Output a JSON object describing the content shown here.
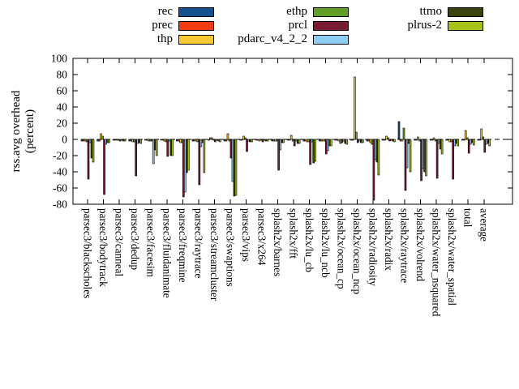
{
  "page": {
    "background": "#ffffff",
    "axis_color": "#000000"
  },
  "chart_data": {
    "type": "bar",
    "title": "",
    "ylabel_lines": [
      "rss.avg overhead",
      "(percent)"
    ],
    "ylim": [
      -80,
      100
    ],
    "ytick_step": 20,
    "ytick_labels": [
      "100",
      "80",
      "60",
      "40",
      "20",
      "0",
      "-20",
      "-40",
      "-60",
      "-80"
    ],
    "grid": false,
    "zero_line": "dashed",
    "legend_position": "top",
    "legend_columns": [
      [
        "rec",
        "prec",
        "thp"
      ],
      [
        "ethp",
        "prcl",
        "pdarc_v4_2_2"
      ],
      [
        "ttmo",
        "plrus-2"
      ]
    ],
    "unit": "percent",
    "categories": [
      "parsec3/blackscholes",
      "parsec3/bodytrack",
      "parsec3/canneal",
      "parsec3/dedup",
      "parsec3/facesim",
      "parsec3/fluidanimate",
      "parsec3/freqmine",
      "parsec3/raytrace",
      "parsec3/streamcluster",
      "parsec3/swaptions",
      "parsec3/vips",
      "parsec3/x264",
      "splash2x/barnes",
      "splash2x/fft",
      "splash2x/lu_cb",
      "splash2x/lu_ncb",
      "splash2x/ocean_cp",
      "splash2x/ocean_ncp",
      "splash2x/radiosity",
      "splash2x/radix",
      "splash2x/raytrace",
      "splash2x/volrend",
      "splash2x/water_nsquared",
      "splash2x/water_spatial",
      "total",
      "average"
    ],
    "series": [
      {
        "name": "rec",
        "color": "#15518f",
        "values": [
          -2,
          -2,
          -1,
          -2,
          -1,
          -1,
          -2,
          -2,
          -1,
          -2,
          -1,
          -1,
          -2,
          -1,
          -2,
          -2,
          -1,
          -1,
          -2,
          -1,
          22,
          -1,
          -1,
          -1,
          -1,
          -1
        ]
      },
      {
        "name": "prec",
        "color": "#f03c10",
        "values": [
          -2,
          -2,
          -1,
          -2,
          -1,
          -1,
          -2,
          -2,
          2,
          -2,
          -1,
          -1,
          -2,
          -1,
          -2,
          -2,
          -1,
          -1,
          -2,
          -1,
          -2,
          -1,
          -1,
          -1,
          -1,
          -1
        ]
      },
      {
        "name": "thp",
        "color": "#f8c932",
        "values": [
          -2,
          7,
          -1,
          -3,
          -2,
          -2,
          -4,
          -2,
          2,
          7,
          4,
          -2,
          -2,
          5,
          -3,
          -2,
          -2,
          77,
          -4,
          4,
          -2,
          3,
          2,
          -3,
          11,
          13
        ]
      },
      {
        "name": "ethp",
        "color": "#61a024",
        "values": [
          -3,
          4,
          -1,
          -3,
          -2,
          -3,
          -4,
          -3,
          -1,
          -2,
          2,
          -1,
          -2,
          -2,
          -3,
          -2,
          -5,
          9,
          -6,
          2,
          14,
          -2,
          -2,
          -3,
          2,
          3
        ]
      },
      {
        "name": "prcl",
        "color": "#7a1a33",
        "values": [
          -49,
          -68,
          -2,
          -45,
          -2,
          -21,
          -71,
          -56,
          -3,
          -23,
          -15,
          -3,
          -38,
          -8,
          -31,
          -18,
          -4,
          -4,
          -75,
          -2,
          -63,
          -51,
          -48,
          -49,
          -17,
          -16
        ]
      },
      {
        "name": "pdarc_v4_2_2",
        "color": "#8ecdf2",
        "values": [
          -4,
          -6,
          -1,
          -5,
          -30,
          -2,
          -65,
          -9,
          -1,
          -52,
          -2,
          -1,
          -13,
          -2,
          -3,
          -14,
          -2,
          -2,
          -25,
          -1,
          -35,
          -36,
          -5,
          -8,
          -6,
          -6
        ]
      },
      {
        "name": "ttmo",
        "color": "#3c430f",
        "values": [
          -23,
          -4,
          -2,
          -4,
          -13,
          -20,
          -41,
          -4,
          -2,
          -70,
          -3,
          -2,
          -4,
          -5,
          -29,
          -8,
          -5,
          -4,
          -28,
          -2,
          -5,
          -40,
          -12,
          -5,
          -4,
          -5
        ]
      },
      {
        "name": "plrus-2",
        "color": "#a8c21b",
        "values": [
          -28,
          -4,
          -2,
          -5,
          -20,
          -20,
          -38,
          -41,
          -3,
          -69,
          -3,
          -2,
          -4,
          -5,
          -27,
          -8,
          -6,
          -4,
          -44,
          -3,
          -40,
          -45,
          -18,
          -8,
          -7,
          -8
        ]
      }
    ]
  }
}
